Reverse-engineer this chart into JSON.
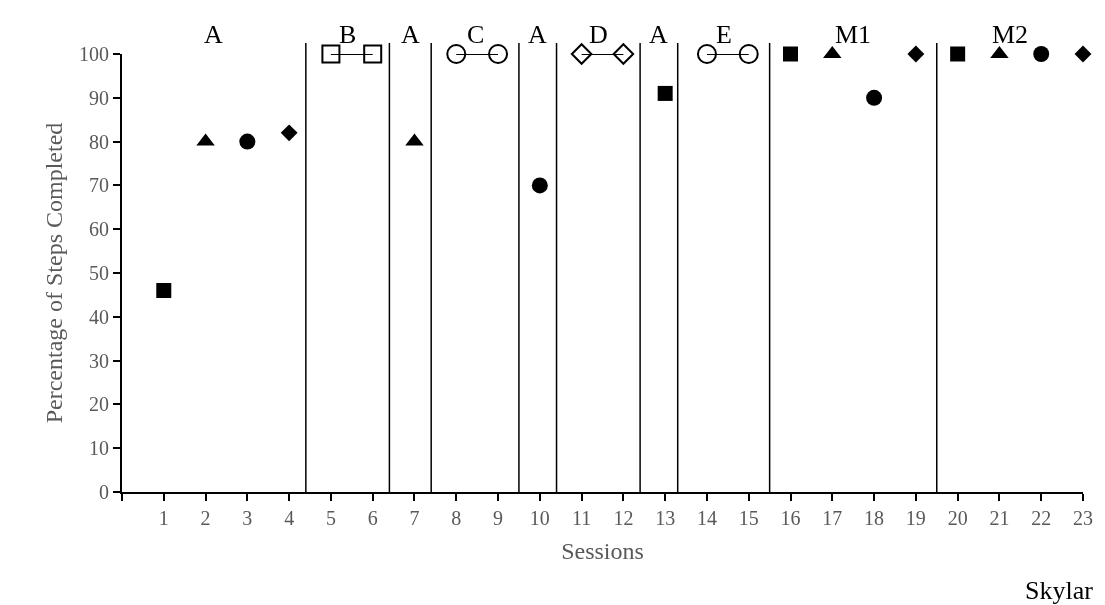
{
  "chart_data": {
    "type": "scatter",
    "xlabel": "Sessions",
    "ylabel": "Percentage of Steps Completed",
    "series": [
      {
        "marker": "square",
        "color": "#000000",
        "x": [
          1,
          13,
          16,
          20
        ],
        "values": [
          46,
          91,
          100,
          100
        ]
      },
      {
        "marker": "triangle",
        "color": "#000000",
        "x": [
          2,
          7,
          17,
          21
        ],
        "values": [
          80,
          80,
          100,
          100
        ]
      },
      {
        "marker": "circle",
        "color": "#000000",
        "x": [
          3,
          10,
          18,
          22
        ],
        "values": [
          80,
          70,
          90,
          100
        ]
      },
      {
        "marker": "diamond",
        "color": "#000000",
        "x": [
          4,
          19,
          23
        ],
        "values": [
          82,
          100,
          100
        ]
      },
      {
        "type": "line",
        "marker": "square",
        "color": "#000000",
        "x": [
          5,
          6
        ],
        "values": [
          100,
          100
        ]
      },
      {
        "type": "line",
        "marker": "circle",
        "color": "#000000",
        "x": [
          8,
          9
        ],
        "values": [
          100,
          100
        ]
      },
      {
        "type": "line",
        "marker": "diamond",
        "color": "#000000",
        "x": [
          11,
          12
        ],
        "values": [
          100,
          100
        ]
      },
      {
        "type": "line",
        "marker": "circle",
        "color": "#000000",
        "x": [
          14,
          15
        ],
        "values": [
          100,
          100
        ]
      }
    ],
    "xlim": [
      0,
      23
    ],
    "xticks": [
      {
        "value": 0,
        "label": null
      },
      1,
      2,
      3,
      4,
      5,
      6,
      7,
      8,
      9,
      10,
      11,
      12,
      13,
      14,
      15,
      16,
      17,
      18,
      19,
      20,
      21,
      22,
      23
    ],
    "ylim": [
      0,
      100
    ],
    "yticks": [
      0,
      10,
      20,
      30,
      40,
      50,
      60,
      70,
      80,
      90,
      100
    ],
    "grid": false,
    "ref_lines": [
      {
        "axis": "x",
        "value": 4.4,
        "label": null,
        "color": "#000000"
      },
      {
        "axis": "x",
        "value": 6.4,
        "label": null,
        "color": "#000000"
      },
      {
        "axis": "x",
        "value": 7.4,
        "label": null,
        "color": "#000000"
      },
      {
        "axis": "x",
        "value": 9.5,
        "label": null,
        "color": "#000000"
      },
      {
        "axis": "x",
        "value": 10.4,
        "label": null,
        "color": "#000000"
      },
      {
        "axis": "x",
        "value": 12.4,
        "label": null,
        "color": "#000000"
      },
      {
        "axis": "x",
        "value": 13.3,
        "label": null,
        "color": "#000000"
      },
      {
        "axis": "x",
        "value": 15.5,
        "label": null,
        "color": "#000000"
      },
      {
        "axis": "x",
        "value": 19.5,
        "label": null,
        "color": "#000000"
      }
    ],
    "annotations": [
      "A",
      "B",
      "A",
      "C",
      "A",
      "D",
      "A",
      "E",
      "M1",
      "M2",
      "Skylar"
    ]
  }
}
